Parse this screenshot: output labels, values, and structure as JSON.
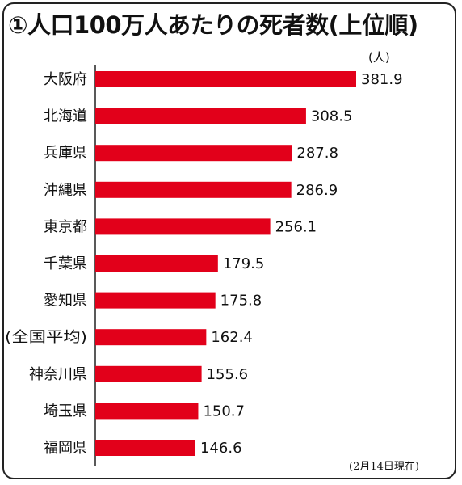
{
  "title": "①人口100万人あたりの死者数(上位順)",
  "unit_label": "(人)",
  "note": "(2月14日現在)",
  "chart_data": {
    "type": "bar",
    "orientation": "horizontal",
    "title": "①人口100万人あたりの死者数(上位順)",
    "unit": "(人)",
    "categories": [
      "大阪府",
      "北海道",
      "兵庫県",
      "沖縄県",
      "東京都",
      "千葉県",
      "愛知県",
      "(全国平均)",
      "神奈川県",
      "埼玉県",
      "福岡県"
    ],
    "values": [
      381.9,
      308.5,
      287.8,
      286.9,
      256.1,
      179.5,
      175.8,
      162.4,
      155.6,
      150.7,
      146.6
    ],
    "bar_color": "#e2001a",
    "grid": false,
    "legend": "none"
  }
}
